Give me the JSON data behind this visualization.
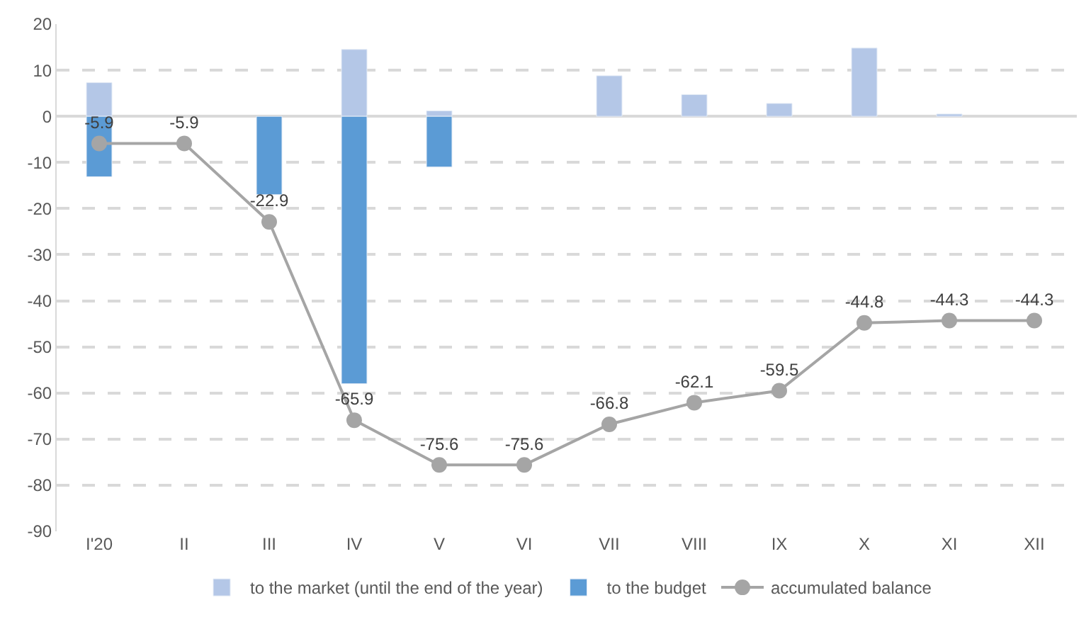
{
  "chart_data": {
    "type": "bar",
    "categories": [
      "I'20",
      "II",
      "III",
      "IV",
      "V",
      "VI",
      "VII",
      "VIII",
      "IX",
      "X",
      "XI",
      "XII"
    ],
    "series": [
      {
        "name": "to the market (until the end of the year)",
        "color": "#b4c7e7",
        "values": [
          7.3,
          null,
          null,
          14.5,
          1.2,
          null,
          8.8,
          4.7,
          2.8,
          14.8,
          0.5,
          null
        ]
      },
      {
        "name": "to the budget",
        "color": "#5b9bd5",
        "values": [
          -13.1,
          null,
          -17,
          -58,
          -11,
          null,
          null,
          null,
          null,
          null,
          null,
          null
        ]
      },
      {
        "name": "accumulated balance",
        "type": "line",
        "color": "#a5a5a5",
        "marker": "circle",
        "values": [
          -5.9,
          -5.9,
          -22.9,
          -65.9,
          -75.6,
          -75.6,
          -66.8,
          -62.1,
          -59.5,
          -44.8,
          -44.3,
          -44.3
        ],
        "value_labels": [
          "-5.9",
          "-5.9",
          "-22.9",
          "-65.9",
          "-75.6",
          "-75.6",
          "-66.8",
          "-62.1",
          "-59.5",
          "-44.8",
          "-44.3",
          "-44.3"
        ]
      }
    ],
    "ylim": [
      -90,
      20
    ],
    "yticks": [
      -90,
      -80,
      -70,
      -60,
      -50,
      -40,
      -30,
      -20,
      -10,
      0,
      10,
      20
    ],
    "grid": "y",
    "legend": "bottom"
  }
}
